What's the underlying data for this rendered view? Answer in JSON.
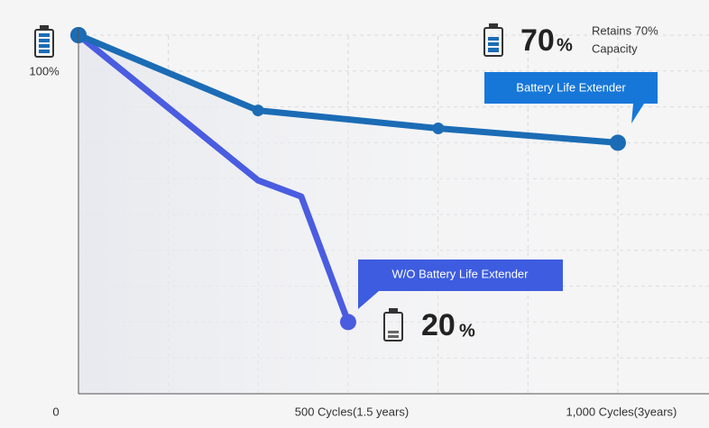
{
  "chart_data": {
    "type": "line",
    "series": [
      {
        "name": "Battery Life Extender",
        "color": "#1b6cb5",
        "x": [
          0,
          333,
          667,
          1000
        ],
        "values": [
          100,
          79,
          74,
          70
        ],
        "markers": true
      },
      {
        "name": "W/O Battery Life Extender",
        "color": "#4a5ce0",
        "x": [
          0,
          333,
          413,
          500
        ],
        "values": [
          100,
          59.5,
          55,
          20
        ],
        "markers": false
      }
    ],
    "xlim": [
      0,
      1169
    ],
    "ylim": [
      0,
      100
    ],
    "xticks": [
      {
        "value": 0,
        "label": "0"
      },
      {
        "value": 500,
        "label": "500 Cycles(1.5 years)"
      },
      {
        "value": 1000,
        "label": "1,000 Cycles(3years)"
      }
    ],
    "yticks": [
      {
        "value": 100,
        "label": "100%"
      }
    ],
    "xgrid": [
      166.7,
      333.3,
      500,
      666.7,
      833.3,
      1000
    ],
    "ygrid": [
      10,
      20,
      30,
      40,
      50,
      60,
      70,
      80,
      90,
      100
    ],
    "grid": true,
    "annotations": {
      "top_value": "70",
      "top_unit": "%",
      "top_note": [
        "Retains 70%",
        "Capacity"
      ],
      "bottom_value": "20",
      "bottom_unit": "%"
    }
  }
}
